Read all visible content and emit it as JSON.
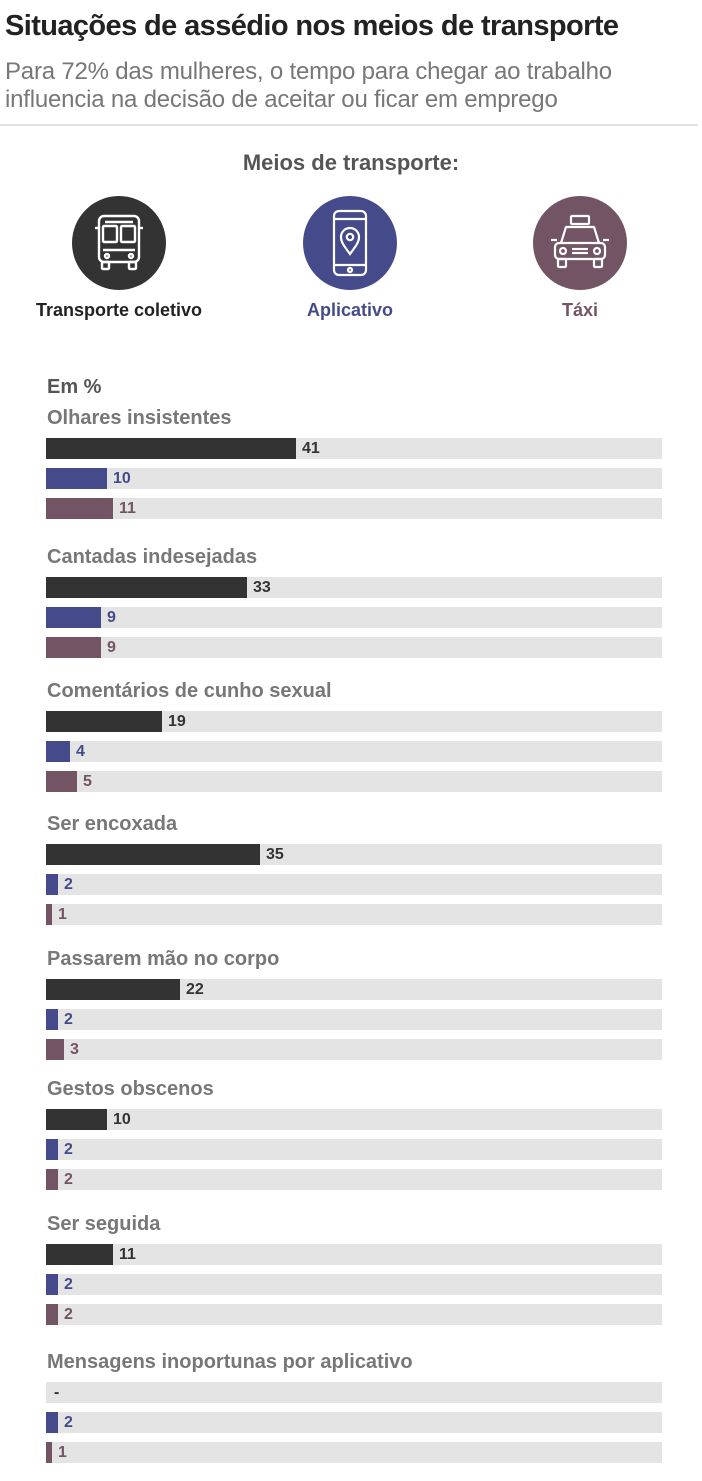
{
  "header": {
    "title": "Situações de assédio nos meios de transporte",
    "subtitle": "Para 72% das mulheres, o tempo para chegar ao trabalho influencia na decisão de aceitar ou ficar em emprego"
  },
  "legend": {
    "title": "Meios de transporte:",
    "items": [
      {
        "label": "Transporte coletivo",
        "color": "#333333",
        "icon": "bus-icon"
      },
      {
        "label": "Aplicativo",
        "color": "#454b8a",
        "icon": "smartphone-location-icon"
      },
      {
        "label": "Táxi",
        "color": "#735464",
        "icon": "taxi-icon"
      }
    ]
  },
  "chart_data": {
    "type": "bar",
    "orientation": "horizontal",
    "unit_label": "Em %",
    "xlim": [
      0,
      100
    ],
    "series": [
      {
        "name": "Transporte coletivo",
        "color": "#333333",
        "values": [
          41,
          33,
          19,
          35,
          22,
          10,
          11,
          null
        ]
      },
      {
        "name": "Aplicativo",
        "color": "#454b8a",
        "values": [
          10,
          9,
          4,
          2,
          2,
          2,
          2,
          2
        ]
      },
      {
        "name": "Táxi",
        "color": "#735464",
        "values": [
          11,
          9,
          5,
          1,
          3,
          2,
          2,
          1
        ]
      }
    ],
    "categories": [
      "Olhares insistentes",
      "Cantadas indesejadas",
      "Comentários de cunho sexual",
      "Ser encoxada",
      "Passarem mão no corpo",
      "Gestos obscenos",
      "Ser seguida",
      "Mensagens inoportunas por aplicativo"
    ],
    "missing_value_label": "-"
  }
}
